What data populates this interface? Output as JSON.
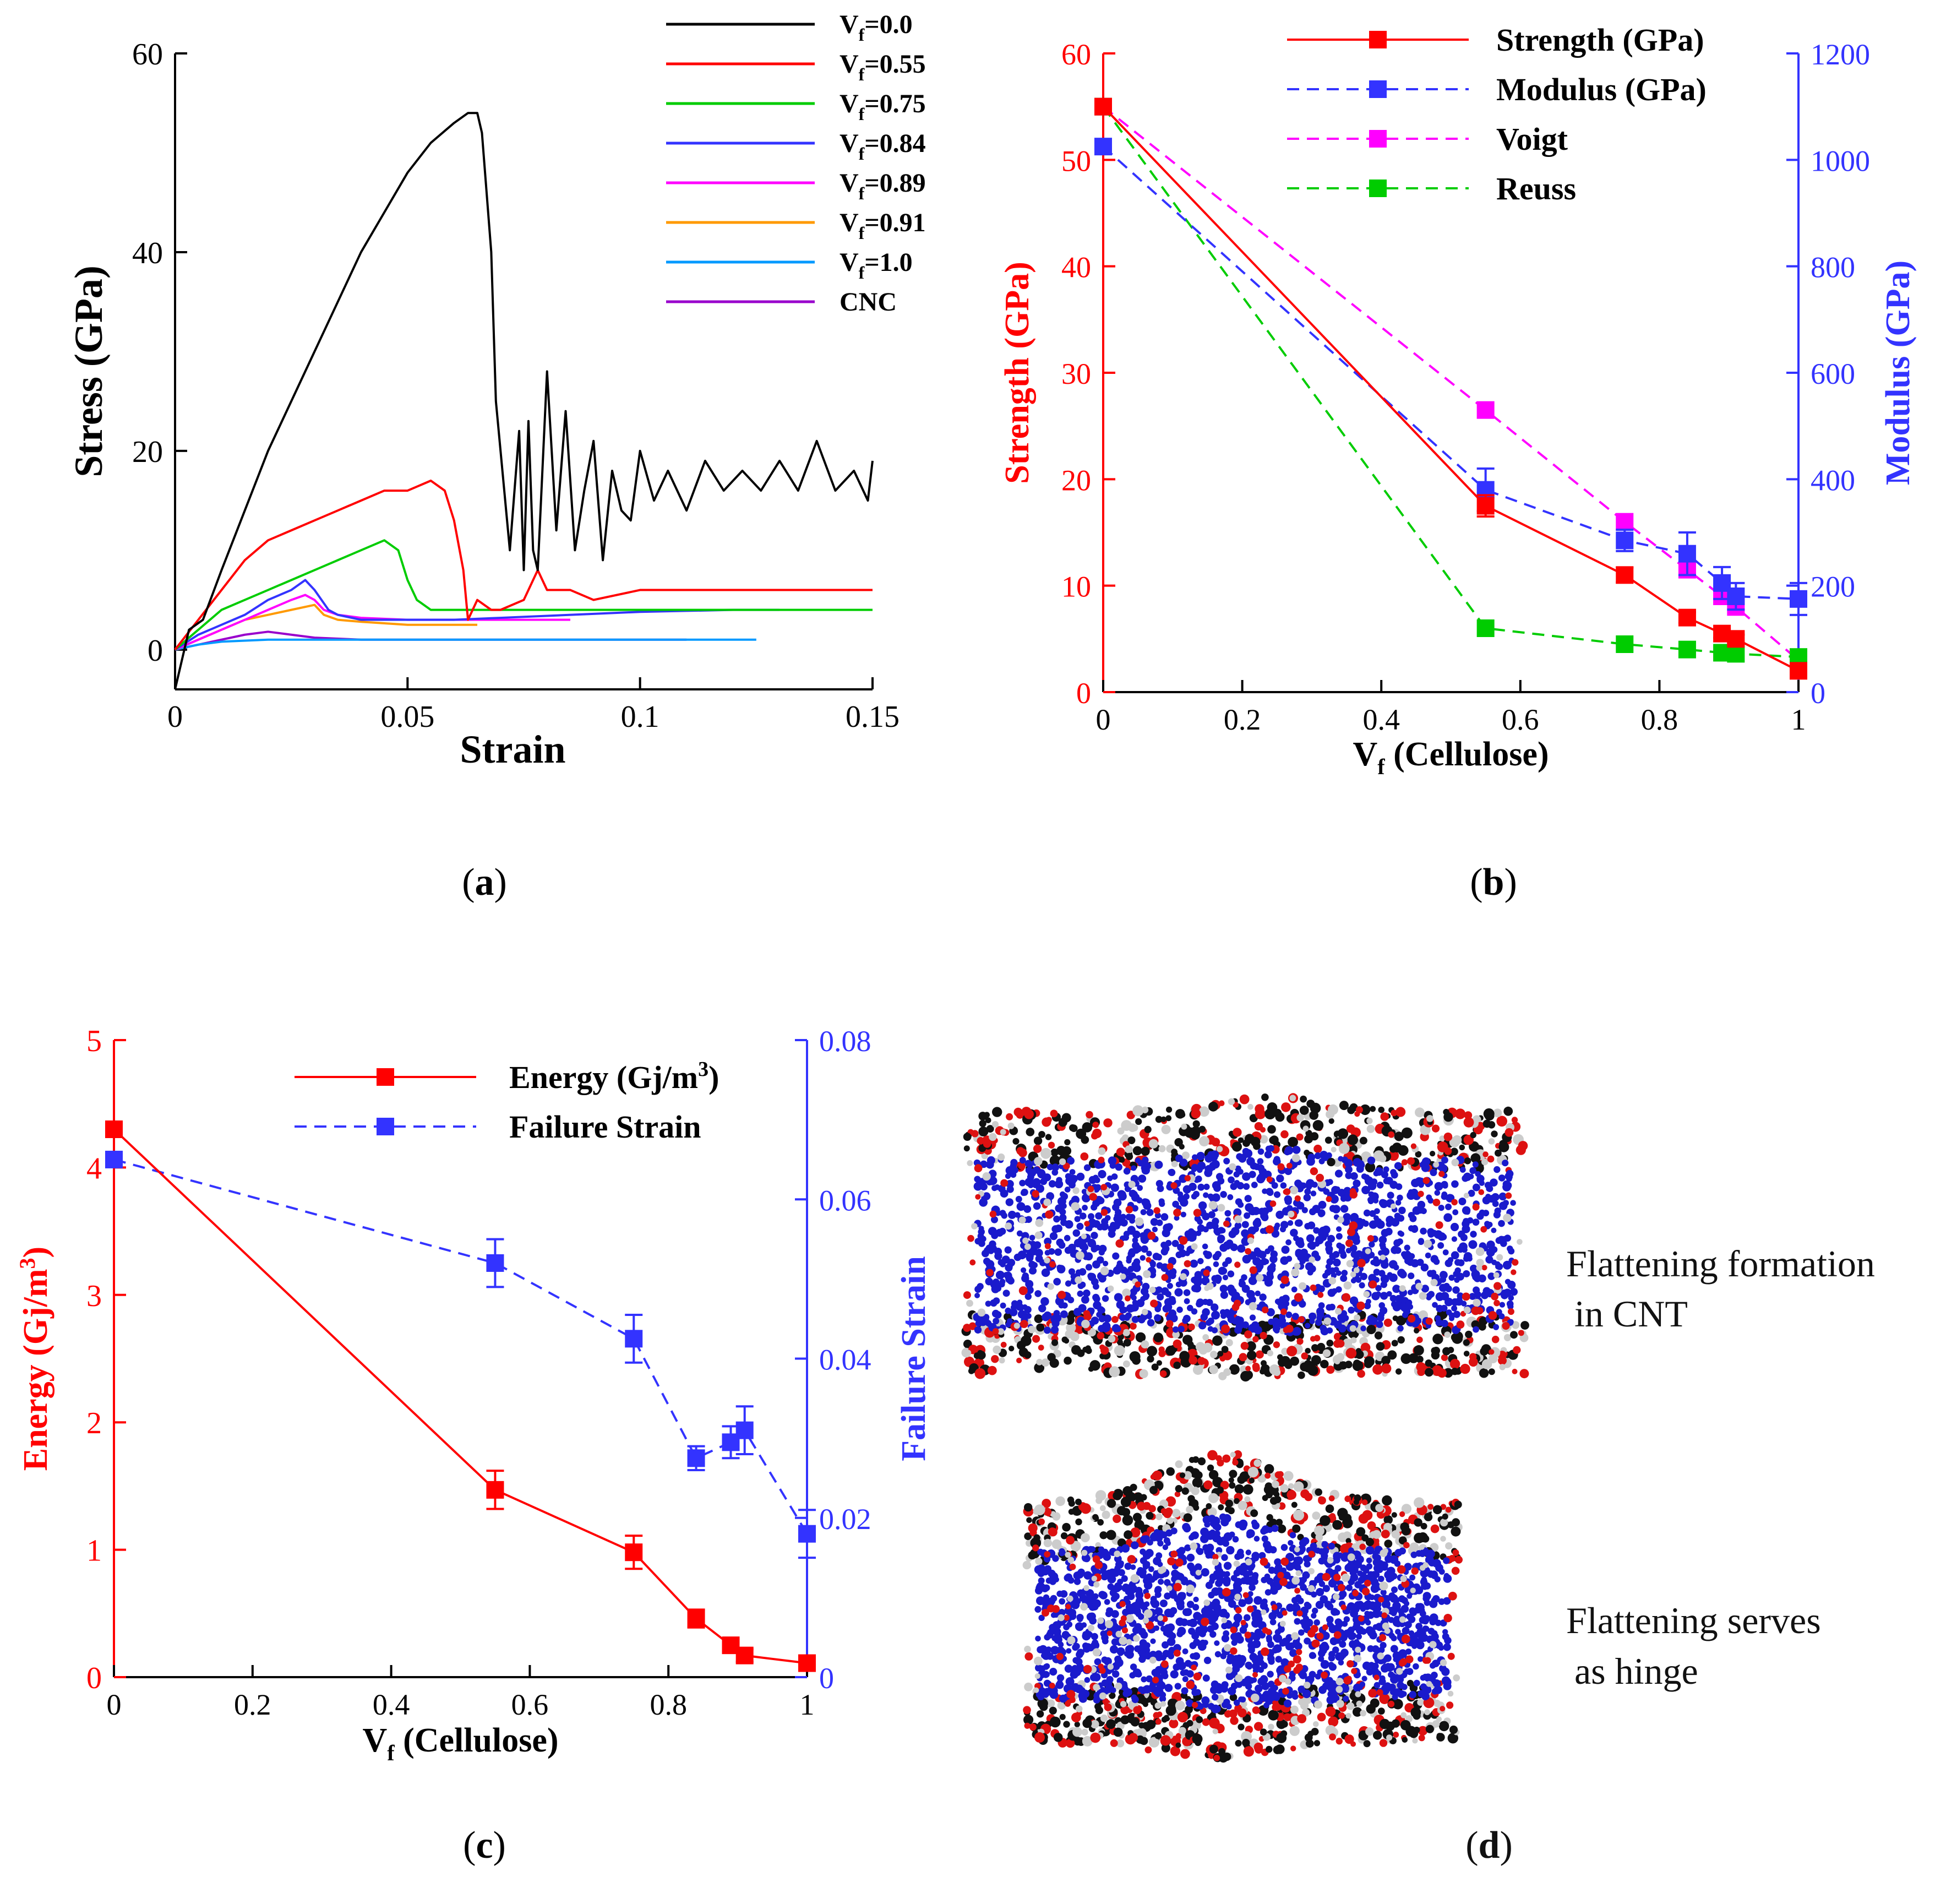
{
  "chart_data": [
    {
      "type": "line",
      "panel_label": "(a)",
      "panel_letter": "a",
      "xlabel": "Strain",
      "ylabel": "Stress (GPa)",
      "xlim": [
        0,
        0.15
      ],
      "ylim": [
        -4,
        60
      ],
      "xticks": [
        0,
        0.05,
        0.1,
        0.15
      ],
      "xtick_labels": [
        "0",
        "0.05",
        "0.1",
        "0.15"
      ],
      "yticks": [
        0,
        20,
        40,
        60
      ],
      "ytick_labels": [
        "0",
        "20",
        "40",
        "60"
      ],
      "legend": "top-right",
      "series": [
        {
          "name": "Vf=0.0",
          "label_main": "V",
          "label_sub": "f",
          "label_rest": "=0.0",
          "color": "#000000",
          "x": [
            0,
            0.003,
            0.006,
            0.01,
            0.015,
            0.02,
            0.025,
            0.03,
            0.035,
            0.04,
            0.045,
            0.05,
            0.055,
            0.06,
            0.063,
            0.065,
            0.066,
            0.068,
            0.069,
            0.07,
            0.072,
            0.074,
            0.075,
            0.076,
            0.077,
            0.078,
            0.08,
            0.082,
            0.084,
            0.086,
            0.088,
            0.09,
            0.092,
            0.094,
            0.096,
            0.098,
            0.1,
            0.103,
            0.106,
            0.11,
            0.114,
            0.118,
            0.122,
            0.126,
            0.13,
            0.134,
            0.138,
            0.142,
            0.146,
            0.149,
            0.15
          ],
          "y": [
            -4,
            2,
            3,
            8,
            14,
            20,
            25,
            30,
            35,
            40,
            44,
            48,
            51,
            53,
            54,
            54,
            52,
            40,
            25,
            20,
            10,
            22,
            8,
            23,
            10,
            8,
            28,
            12,
            24,
            10,
            16,
            21,
            9,
            18,
            14,
            13,
            20,
            15,
            18,
            14,
            19,
            16,
            18,
            16,
            19,
            16,
            21,
            16,
            18,
            15,
            19
          ]
        },
        {
          "name": "Vf=0.55",
          "label_main": "V",
          "label_sub": "f",
          "label_rest": "=0.55",
          "color": "#ff0000",
          "x": [
            0,
            0.005,
            0.01,
            0.015,
            0.02,
            0.025,
            0.03,
            0.035,
            0.04,
            0.045,
            0.05,
            0.055,
            0.058,
            0.06,
            0.062,
            0.063,
            0.065,
            0.068,
            0.07,
            0.075,
            0.078,
            0.08,
            0.085,
            0.09,
            0.1,
            0.11,
            0.12,
            0.13,
            0.14,
            0.15
          ],
          "y": [
            0,
            3,
            6,
            9,
            11,
            12,
            13,
            14,
            15,
            16,
            16,
            17,
            16,
            13,
            8,
            3,
            5,
            4,
            4,
            5,
            8,
            6,
            6,
            5,
            6,
            6,
            6,
            6,
            6,
            6
          ]
        },
        {
          "name": "Vf=0.75",
          "label_main": "V",
          "label_sub": "f",
          "label_rest": "=0.75",
          "color": "#00cc00",
          "x": [
            0,
            0.005,
            0.01,
            0.015,
            0.02,
            0.025,
            0.03,
            0.035,
            0.04,
            0.045,
            0.048,
            0.05,
            0.052,
            0.055,
            0.06,
            0.07,
            0.08,
            0.09,
            0.1,
            0.11,
            0.12,
            0.13,
            0.14,
            0.15
          ],
          "y": [
            0,
            2,
            4,
            5,
            6,
            7,
            8,
            9,
            10,
            11,
            10,
            7,
            5,
            4,
            4,
            4,
            4,
            4,
            4,
            4,
            4,
            4,
            4,
            4
          ]
        },
        {
          "name": "Vf=0.84",
          "label_main": "V",
          "label_sub": "f",
          "label_rest": "=0.84",
          "color": "#3333ff",
          "x": [
            0,
            0.005,
            0.01,
            0.015,
            0.02,
            0.025,
            0.028,
            0.03,
            0.033,
            0.035,
            0.04,
            0.05,
            0.06,
            0.07,
            0.08,
            0.09,
            0.1,
            0.11,
            0.12,
            0.13
          ],
          "y": [
            0,
            1.5,
            2.5,
            3.5,
            5,
            6,
            7,
            6,
            4,
            3.5,
            3,
            3,
            3,
            3.2,
            3.4,
            3.6,
            3.8,
            3.9,
            4,
            4
          ]
        },
        {
          "name": "Vf=0.89",
          "label_main": "V",
          "label_sub": "f",
          "label_rest": "=0.89",
          "color": "#ff00ff",
          "x": [
            0,
            0.005,
            0.01,
            0.015,
            0.02,
            0.025,
            0.028,
            0.03,
            0.032,
            0.035,
            0.04,
            0.05,
            0.06,
            0.07,
            0.08,
            0.085
          ],
          "y": [
            0,
            1,
            2,
            3,
            4,
            5,
            5.5,
            5,
            4,
            3.5,
            3.2,
            3,
            3,
            3,
            3,
            3
          ]
        },
        {
          "name": "Vf=0.91",
          "label_main": "V",
          "label_sub": "f",
          "label_rest": "=0.91",
          "color": "#ff9900",
          "x": [
            0,
            0.005,
            0.01,
            0.015,
            0.02,
            0.025,
            0.03,
            0.032,
            0.035,
            0.04,
            0.05,
            0.06,
            0.065
          ],
          "y": [
            0,
            1,
            2,
            3,
            3.5,
            4,
            4.5,
            3.5,
            3,
            2.8,
            2.5,
            2.5,
            2.5
          ]
        },
        {
          "name": "Vf=1.0",
          "label_main": "V",
          "label_sub": "f",
          "label_rest": "=1.0",
          "color": "#0099ff",
          "x": [
            0,
            0.005,
            0.01,
            0.02,
            0.03,
            0.04,
            0.05,
            0.06,
            0.07,
            0.08,
            0.09,
            0.1,
            0.11,
            0.12,
            0.125
          ],
          "y": [
            0,
            0.5,
            0.8,
            1,
            1,
            1,
            1,
            1,
            1,
            1,
            1,
            1,
            1,
            1,
            1
          ]
        },
        {
          "name": "CNC",
          "label_main": "CNC",
          "label_sub": "",
          "label_rest": "",
          "color": "#9900cc",
          "x": [
            0,
            0.005,
            0.01,
            0.015,
            0.02,
            0.025,
            0.03,
            0.04,
            0.05,
            0.06,
            0.07,
            0.08,
            0.09,
            0.1,
            0.11
          ],
          "y": [
            0,
            0.5,
            1,
            1.5,
            1.8,
            1.5,
            1.2,
            1,
            1,
            1,
            1,
            1,
            1,
            1,
            1
          ]
        }
      ]
    },
    {
      "type": "line",
      "panel_label": "(b)",
      "panel_letter": "b",
      "xlabel_main": "V",
      "xlabel_sub": "f",
      "xlabel_rest": " (Cellulose)",
      "ylabel_left": "Strength (GPa)",
      "ylabel_right": "Modulus (GPa)",
      "xlim": [
        0,
        1
      ],
      "ylim_left": [
        0,
        60
      ],
      "ylim_right": [
        0,
        1200
      ],
      "xticks": [
        0,
        0.2,
        0.4,
        0.6,
        0.8,
        1
      ],
      "xtick_labels": [
        "0",
        "0.2",
        "0.4",
        "0.6",
        "0.8",
        "1"
      ],
      "yticks_left": [
        0,
        10,
        20,
        30,
        40,
        50,
        60
      ],
      "ytick_labels_left": [
        "0",
        "10",
        "20",
        "30",
        "40",
        "50",
        "60"
      ],
      "yticks_right": [
        0,
        200,
        400,
        600,
        800,
        1000,
        1200
      ],
      "ytick_labels_right": [
        "0",
        "200",
        "400",
        "600",
        "800",
        "1000",
        "1200"
      ],
      "legend": "top-center",
      "series": [
        {
          "name": "Strength (GPa)",
          "axis": "left",
          "color": "#ff0000",
          "dash": false,
          "x": [
            0,
            0.55,
            0.75,
            0.84,
            0.89,
            0.91,
            1.0
          ],
          "y": [
            55,
            17.5,
            11,
            7,
            5.5,
            5,
            2
          ],
          "err": [
            0,
            1,
            0.7,
            0.5,
            0.4,
            0.4,
            0.3
          ]
        },
        {
          "name": "Modulus (GPa)",
          "axis": "right",
          "color": "#3333ff",
          "dash": true,
          "x": [
            0,
            0.55,
            0.75,
            0.84,
            0.89,
            0.91,
            1.0
          ],
          "y": [
            1025,
            380,
            285,
            260,
            205,
            180,
            175
          ],
          "err": [
            0,
            40,
            20,
            40,
            30,
            25,
            30
          ]
        },
        {
          "name": "Voigt",
          "axis": "left",
          "color": "#ff00ff",
          "dash": true,
          "x": [
            0,
            0.55,
            0.75,
            0.84,
            0.89,
            0.91,
            1.0
          ],
          "y": [
            55,
            26.5,
            16,
            11.5,
            9,
            8,
            3
          ]
        },
        {
          "name": "Reuss",
          "axis": "left",
          "color": "#00cc00",
          "dash": true,
          "x": [
            0,
            0.55,
            0.75,
            0.84,
            0.89,
            0.91,
            1.0
          ],
          "y": [
            55,
            6,
            4.5,
            4,
            3.7,
            3.6,
            3.3
          ]
        }
      ]
    },
    {
      "type": "line",
      "panel_label": "(c)",
      "panel_letter": "c",
      "xlabel_main": "V",
      "xlabel_sub": "f",
      "xlabel_rest": " (Cellulose)",
      "ylabel_left": "Energy (Gj/m",
      "ylabel_left_sup": "3",
      "ylabel_left_end": ")",
      "ylabel_right": "Failure Strain",
      "xlim": [
        0,
        1
      ],
      "ylim_left": [
        0,
        5
      ],
      "ylim_right": [
        0,
        0.08
      ],
      "xticks": [
        0,
        0.2,
        0.4,
        0.6,
        0.8,
        1
      ],
      "xtick_labels": [
        "0",
        "0.2",
        "0.4",
        "0.6",
        "0.8",
        "1"
      ],
      "yticks_left": [
        0,
        1,
        2,
        3,
        4,
        5
      ],
      "ytick_labels_left": [
        "0",
        "1",
        "2",
        "3",
        "4",
        "5"
      ],
      "yticks_right": [
        0,
        0.02,
        0.04,
        0.06,
        0.08
      ],
      "ytick_labels_right": [
        "0",
        "0.02",
        "0.04",
        "0.06",
        "0.08"
      ],
      "legend": "top-right",
      "series": [
        {
          "name": "Energy (Gj/m3)",
          "label_main": "Energy (Gj/m",
          "label_sup": "3",
          "label_end": ")",
          "axis": "left",
          "color": "#ff0000",
          "dash": false,
          "x": [
            0,
            0.55,
            0.75,
            0.84,
            0.89,
            0.91,
            1.0
          ],
          "y": [
            4.3,
            1.47,
            0.98,
            0.46,
            0.25,
            0.17,
            0.11
          ],
          "err": [
            0,
            0.15,
            0.13,
            0.07,
            0.05,
            0.05,
            0.03
          ]
        },
        {
          "name": "Failure Strain",
          "label_main": "Failure Strain",
          "label_sup": "",
          "label_end": "",
          "axis": "right",
          "color": "#3333ff",
          "dash": true,
          "x": [
            0,
            0.55,
            0.75,
            0.84,
            0.89,
            0.91,
            1.0
          ],
          "y": [
            0.065,
            0.052,
            0.0425,
            0.0275,
            0.0295,
            0.031,
            0.018
          ],
          "err": [
            0,
            0.003,
            0.003,
            0.0015,
            0.002,
            0.003,
            0.003
          ]
        }
      ]
    }
  ],
  "panel_d": {
    "label": "(d)",
    "letter": "d",
    "top_caption_line1": "Flattening formation",
    "top_caption_line2": "in CNT",
    "bottom_caption_line1": "Flattening serves",
    "bottom_caption_line2": "as hinge",
    "atom_colors": {
      "carbon_cnt": "#1a1acc",
      "oxygen": "#dd1111",
      "carbon_cellulose": "#111111",
      "hydrogen": "#cccccc"
    }
  }
}
